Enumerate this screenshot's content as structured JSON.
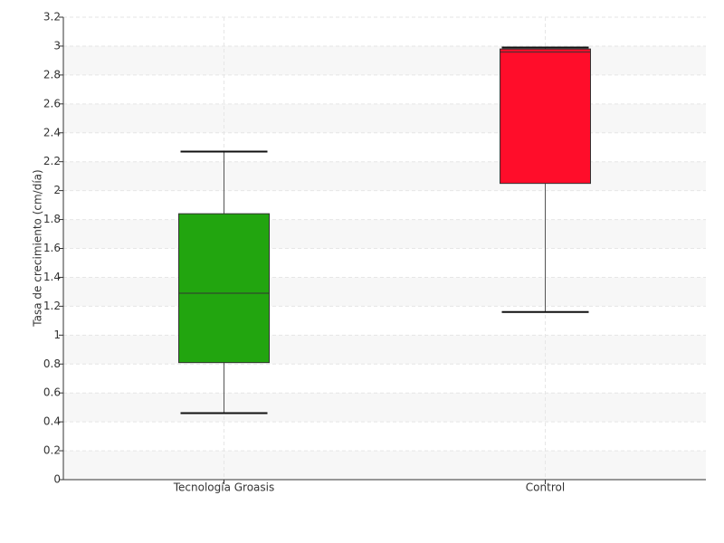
{
  "chart_data": {
    "type": "box",
    "y_label": "Tasa de crecimiento (cm/día)",
    "categories": [
      "Tecnología Groasis",
      "Control"
    ],
    "colors": [
      "#22a50f",
      "#ff0d2a"
    ],
    "min": [
      0.46,
      1.16
    ],
    "q1": [
      0.81,
      2.05
    ],
    "median": [
      1.29,
      2.96
    ],
    "q3": [
      1.84,
      2.98
    ],
    "max": [
      2.27,
      2.99
    ],
    "ylim": [
      0,
      3.2
    ],
    "yticks": [
      0,
      0.2,
      0.4,
      0.6,
      0.8,
      1,
      1.2,
      1.4,
      1.6,
      1.8,
      2,
      2.2,
      2.4,
      2.6,
      2.8,
      3,
      3.2
    ],
    "grid": true
  }
}
